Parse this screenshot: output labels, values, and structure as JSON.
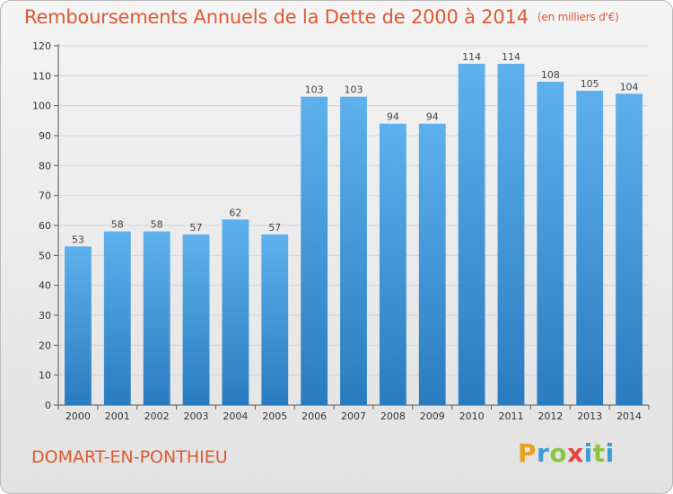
{
  "header": {
    "title": "Remboursements Annuels de la Dette de 2000 à 2014",
    "unit": "(en milliers d'€)"
  },
  "footer": {
    "commune": "DOMART-EN-PONTHIEU",
    "brand_letters": [
      "P",
      "r",
      "o",
      "x",
      "i",
      "t",
      "i"
    ],
    "brand_colors": [
      "#e8a11a",
      "#3f9bd5",
      "#8cc63f",
      "#e8453c",
      "#3f9bd5",
      "#8cc63f",
      "#3f9bd5"
    ]
  },
  "colors": {
    "title": "#dc5a33",
    "bar_top": "#5eb1ec",
    "bar_bottom": "#2a7cc0"
  },
  "chart_data": {
    "type": "bar",
    "categories": [
      "2000",
      "2001",
      "2002",
      "2003",
      "2004",
      "2005",
      "2006",
      "2007",
      "2008",
      "2009",
      "2010",
      "2011",
      "2012",
      "2013",
      "2014"
    ],
    "values": [
      53,
      58,
      58,
      57,
      62,
      57,
      103,
      103,
      94,
      94,
      114,
      114,
      108,
      105,
      104
    ],
    "value_labels": [
      "53",
      "58",
      "58",
      "57",
      "62",
      "57",
      "103",
      "103",
      "94",
      "94",
      "114",
      "114",
      "108",
      "105",
      "104"
    ],
    "y_ticks": [
      "0",
      "10",
      "20",
      "30",
      "40",
      "50",
      "60",
      "70",
      "80",
      "90",
      "100",
      "110",
      "120"
    ],
    "ylim": [
      0,
      120
    ],
    "grid": true,
    "title": "Remboursements Annuels de la Dette de 2000 à 2014",
    "xlabel": "",
    "ylabel": ""
  }
}
